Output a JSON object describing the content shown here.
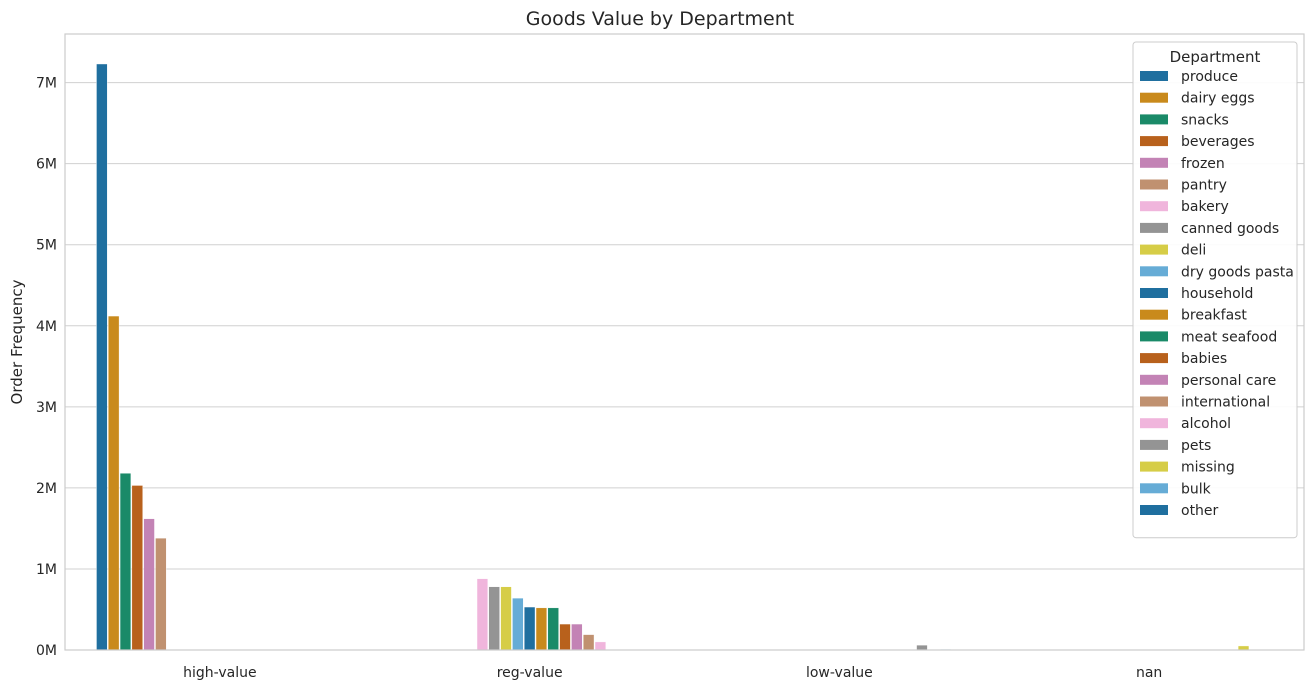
{
  "chart_data": {
    "type": "bar",
    "title": "Goods Value by Department",
    "xlabel": "",
    "ylabel": "Order Frequency",
    "categories": [
      "high-value",
      "reg-value",
      "low-value",
      "nan"
    ],
    "ylim": [
      0,
      7600000
    ],
    "yticks": [
      0,
      1000000,
      2000000,
      3000000,
      4000000,
      5000000,
      6000000,
      7000000
    ],
    "ytick_labels": [
      "0M",
      "1M",
      "2M",
      "3M",
      "4M",
      "5M",
      "6M",
      "7M"
    ],
    "grid": true,
    "legend": {
      "title": "Department",
      "placement": "top-right"
    },
    "series": [
      {
        "name": "produce",
        "color": "#1f6f9f",
        "values": [
          7230000,
          0,
          0,
          0
        ]
      },
      {
        "name": "dairy eggs",
        "color": "#c98a1c",
        "values": [
          4120000,
          0,
          0,
          0
        ]
      },
      {
        "name": "snacks",
        "color": "#1a8a68",
        "values": [
          2180000,
          0,
          0,
          0
        ]
      },
      {
        "name": "beverages",
        "color": "#b8611c",
        "values": [
          2030000,
          0,
          0,
          0
        ]
      },
      {
        "name": "frozen",
        "color": "#c383b5",
        "values": [
          1620000,
          0,
          0,
          0
        ]
      },
      {
        "name": "pantry",
        "color": "#c09170",
        "values": [
          1380000,
          0,
          0,
          0
        ]
      },
      {
        "name": "bakery",
        "color": "#f0b5dc",
        "values": [
          0,
          880000,
          0,
          0
        ]
      },
      {
        "name": "canned goods",
        "color": "#949494",
        "values": [
          0,
          780000,
          0,
          0
        ]
      },
      {
        "name": "deli",
        "color": "#d6cd47",
        "values": [
          0,
          780000,
          0,
          0
        ]
      },
      {
        "name": "dry goods pasta",
        "color": "#66acd6",
        "values": [
          0,
          640000,
          0,
          0
        ]
      },
      {
        "name": "household",
        "color": "#1f6f9f",
        "values": [
          0,
          530000,
          0,
          0
        ]
      },
      {
        "name": "breakfast",
        "color": "#c98a1c",
        "values": [
          0,
          520000,
          0,
          0
        ]
      },
      {
        "name": "meat seafood",
        "color": "#1a8a68",
        "values": [
          0,
          520000,
          0,
          0
        ]
      },
      {
        "name": "babies",
        "color": "#b8611c",
        "values": [
          0,
          320000,
          0,
          0
        ]
      },
      {
        "name": "personal care",
        "color": "#c383b5",
        "values": [
          0,
          320000,
          0,
          0
        ]
      },
      {
        "name": "international",
        "color": "#c09170",
        "values": [
          0,
          190000,
          0,
          0
        ]
      },
      {
        "name": "alcohol",
        "color": "#f0b5dc",
        "values": [
          0,
          100000,
          0,
          0
        ]
      },
      {
        "name": "pets",
        "color": "#949494",
        "values": [
          0,
          0,
          60000,
          0
        ]
      },
      {
        "name": "missing",
        "color": "#d6cd47",
        "values": [
          0,
          0,
          0,
          50000
        ]
      },
      {
        "name": "bulk",
        "color": "#66acd6",
        "values": [
          0,
          0,
          10000,
          0
        ]
      },
      {
        "name": "other",
        "color": "#1f6f9f",
        "values": [
          0,
          0,
          5000,
          0
        ]
      }
    ]
  }
}
